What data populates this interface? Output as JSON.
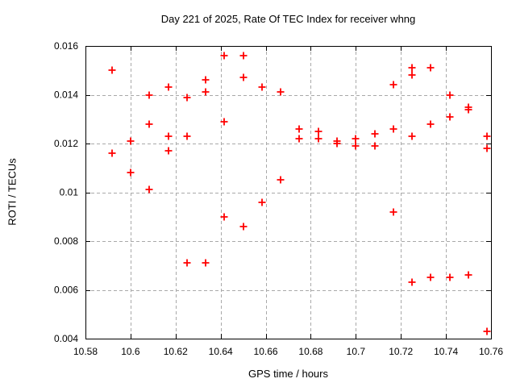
{
  "chart_data": {
    "type": "scatter",
    "title": "Day 221 of 2025, Rate Of TEC Index for receiver whng",
    "xlabel": "GPS time / hours",
    "ylabel": "ROTI / TECUs",
    "xlim": [
      10.58,
      10.76
    ],
    "ylim": [
      0.004,
      0.016
    ],
    "xticks": [
      10.58,
      10.6,
      10.62,
      10.64,
      10.66,
      10.68,
      10.7,
      10.72,
      10.74,
      10.76
    ],
    "xtick_labels": [
      "10.58",
      "10.6",
      "10.62",
      "10.64",
      "10.66",
      "10.68",
      "10.7",
      "10.72",
      "10.74",
      "10.76"
    ],
    "yticks": [
      0.004,
      0.006,
      0.008,
      0.01,
      0.012,
      0.014,
      0.016
    ],
    "ytick_labels": [
      "0.004",
      "0.006",
      "0.008",
      "0.01",
      "0.012",
      "0.014",
      "0.016"
    ],
    "grid": true,
    "legend": "none",
    "marker": {
      "shape": "plus",
      "color": "#ff0000",
      "size": 9
    },
    "grid_color": "#a9a9a9",
    "axis_color": "#000000",
    "background_color": "#ffffff",
    "series": [
      {
        "name": "ROTI",
        "points": [
          [
            10.5917,
            0.015
          ],
          [
            10.5917,
            0.0116
          ],
          [
            10.6,
            0.0121
          ],
          [
            10.6,
            0.0108
          ],
          [
            10.6083,
            0.014
          ],
          [
            10.6083,
            0.0128
          ],
          [
            10.6083,
            0.0101
          ],
          [
            10.6167,
            0.0143
          ],
          [
            10.6167,
            0.0123
          ],
          [
            10.6167,
            0.0117
          ],
          [
            10.625,
            0.0139
          ],
          [
            10.625,
            0.0123
          ],
          [
            10.625,
            0.0071
          ],
          [
            10.6333,
            0.0146
          ],
          [
            10.6333,
            0.0141
          ],
          [
            10.6333,
            0.0071
          ],
          [
            10.6417,
            0.0156
          ],
          [
            10.6417,
            0.0129
          ],
          [
            10.6417,
            0.009
          ],
          [
            10.65,
            0.0156
          ],
          [
            10.65,
            0.0147
          ],
          [
            10.65,
            0.0086
          ],
          [
            10.6583,
            0.0143
          ],
          [
            10.6583,
            0.0096
          ],
          [
            10.6667,
            0.0141
          ],
          [
            10.6667,
            0.0105
          ],
          [
            10.675,
            0.0126
          ],
          [
            10.675,
            0.0122
          ],
          [
            10.6833,
            0.0125
          ],
          [
            10.6833,
            0.0122
          ],
          [
            10.6917,
            0.0121
          ],
          [
            10.6917,
            0.012
          ],
          [
            10.7,
            0.0122
          ],
          [
            10.7,
            0.0119
          ],
          [
            10.7083,
            0.0124
          ],
          [
            10.7083,
            0.0119
          ],
          [
            10.7167,
            0.0144
          ],
          [
            10.7167,
            0.0126
          ],
          [
            10.7167,
            0.0092
          ],
          [
            10.725,
            0.0151
          ],
          [
            10.725,
            0.0148
          ],
          [
            10.725,
            0.0123
          ],
          [
            10.725,
            0.0063
          ],
          [
            10.7333,
            0.0151
          ],
          [
            10.7333,
            0.0128
          ],
          [
            10.7333,
            0.0065
          ],
          [
            10.7417,
            0.014
          ],
          [
            10.7417,
            0.0131
          ],
          [
            10.7417,
            0.0065
          ],
          [
            10.75,
            0.0135
          ],
          [
            10.75,
            0.0134
          ],
          [
            10.75,
            0.0066
          ],
          [
            10.7583,
            0.0123
          ],
          [
            10.7583,
            0.0118
          ],
          [
            10.7583,
            0.0043
          ]
        ]
      }
    ]
  }
}
